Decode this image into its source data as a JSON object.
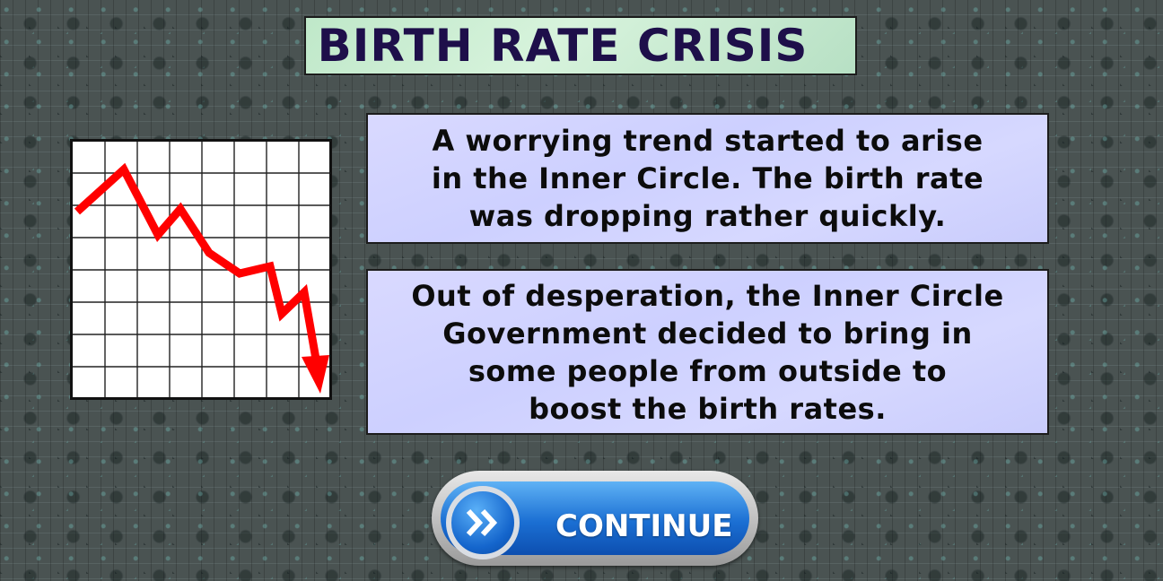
{
  "title": "BIRTH RATE CRISIS",
  "panels": {
    "intro": "A worrying trend started to arise\nin the Inner Circle. The birth rate\nwas dropping rather quickly.",
    "decision": "Out of desperation, the Inner Circle\nGovernment decided to bring in\nsome people from outside to\nboost the birth rates."
  },
  "continue_button": {
    "label": "CONTINUE",
    "icon": "double-chevron-right-icon"
  },
  "chart": {
    "icon": "declining-trend-chart-icon",
    "line_color": "#ff0000",
    "grid_color": "#222222",
    "trend": "falling"
  },
  "colors": {
    "title_bg": "#cdeed3",
    "title_text": "#1e0f4a",
    "panel_bg": "#d2d4ff",
    "button_blue": "#1b6fd3"
  }
}
